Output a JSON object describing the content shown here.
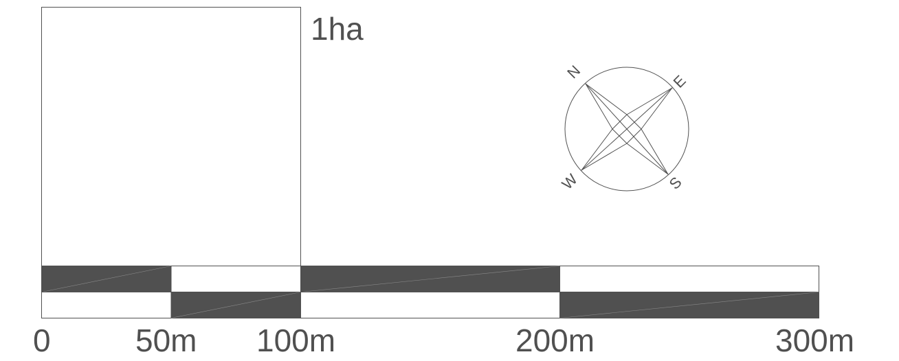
{
  "area_box": {
    "label": "1ha"
  },
  "compass": {
    "north": "N",
    "east": "E",
    "south": "S",
    "west": "W"
  },
  "scale_bar": {
    "unit": "m",
    "fill_color": "#505050",
    "line_color": "#505050",
    "ticks": [
      "0",
      "50m",
      "100m",
      "200m",
      "300m"
    ],
    "segments": [
      {
        "from": 0,
        "to": 50,
        "top_filled": true,
        "bottom_filled": false
      },
      {
        "from": 50,
        "to": 100,
        "top_filled": false,
        "bottom_filled": true
      },
      {
        "from": 100,
        "to": 200,
        "top_filled": true,
        "bottom_filled": false
      },
      {
        "from": 200,
        "to": 300,
        "top_filled": false,
        "bottom_filled": true
      }
    ]
  }
}
